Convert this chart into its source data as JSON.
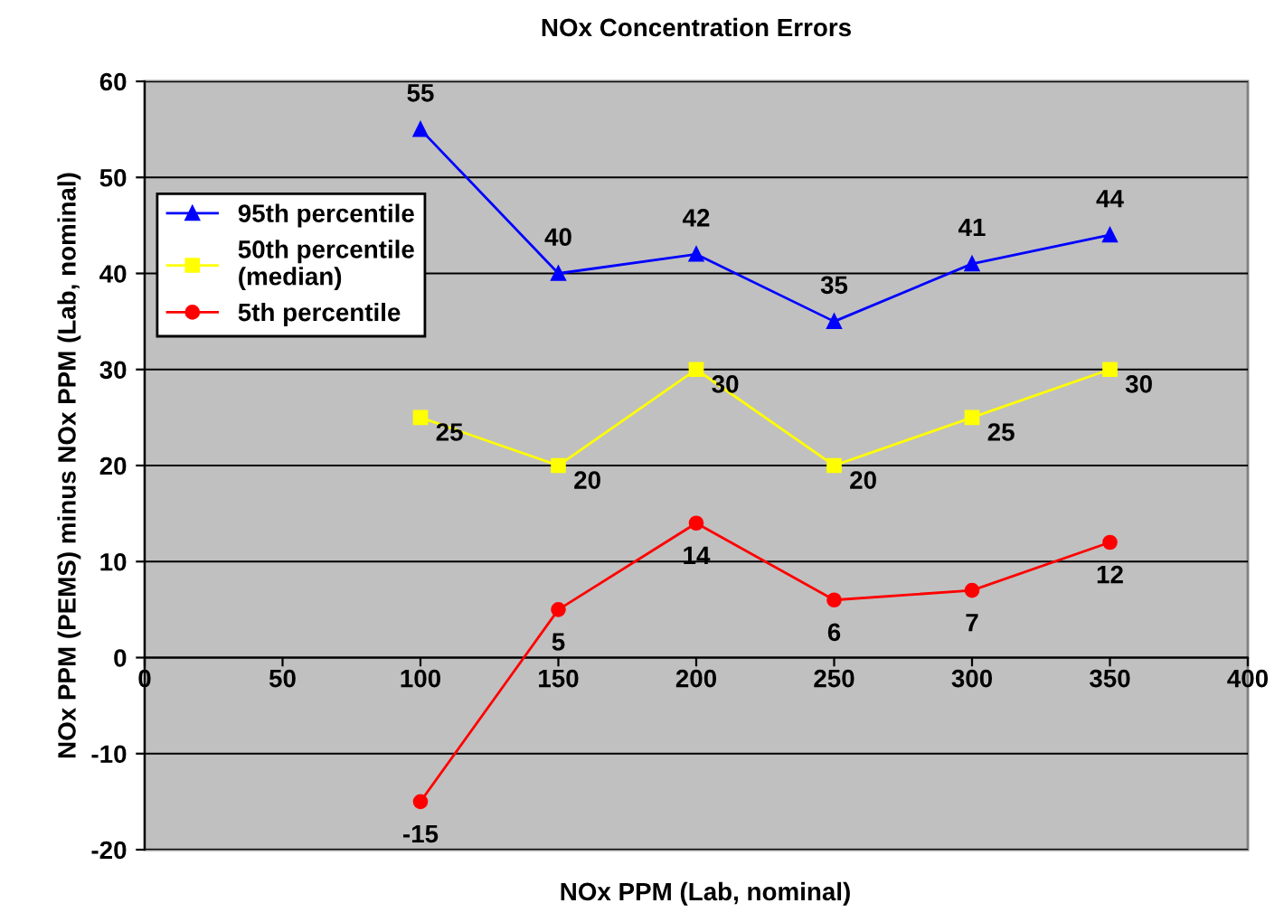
{
  "chart_data": {
    "type": "line",
    "title": "NOx Concentration Errors",
    "xlabel": "NOx PPM (Lab, nominal)",
    "ylabel": "NOx PPM (PEMS) minus NOx PPM (Lab, nominal)",
    "x": [
      100,
      150,
      200,
      250,
      300,
      350
    ],
    "series": [
      {
        "name": "95th percentile",
        "color": "#0000ff",
        "marker": "triangle",
        "values": [
          55,
          40,
          42,
          35,
          41,
          44
        ]
      },
      {
        "name": "50th percentile\n(median)",
        "color": "#ffff00",
        "marker": "square",
        "values": [
          25,
          20,
          30,
          20,
          25,
          30
        ]
      },
      {
        "name": "5th percentile",
        "color": "#ff0000",
        "marker": "circle",
        "values": [
          -15,
          5,
          14,
          6,
          7,
          12
        ]
      }
    ],
    "xlim": [
      0,
      400
    ],
    "xticks": [
      0,
      50,
      100,
      150,
      200,
      250,
      300,
      350,
      400
    ],
    "ylim": [
      -20,
      60
    ],
    "yticks": [
      -20,
      -10,
      0,
      10,
      20,
      30,
      40,
      50,
      60
    ],
    "grid": "y",
    "legend": "top left",
    "data_labels": true
  }
}
